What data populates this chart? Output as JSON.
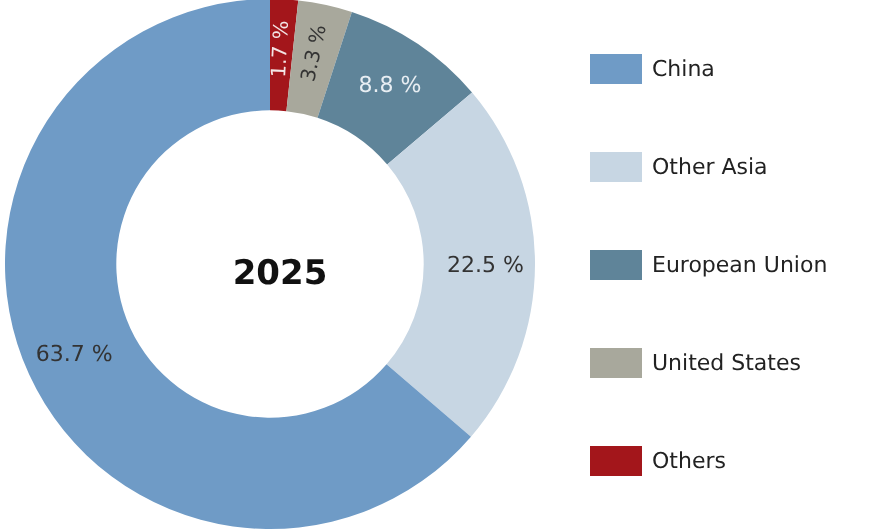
{
  "chart_data": {
    "type": "donut",
    "title": "2025",
    "categories": [
      "China",
      "Other Asia",
      "European Union",
      "United States",
      "Others"
    ],
    "values": [
      63.7,
      22.5,
      8.8,
      3.3,
      1.7
    ],
    "value_labels": [
      "63.7 %",
      "22.5 %",
      "8.8 %",
      "3.3 %",
      "1.7 %"
    ],
    "colors": [
      "#6f9bc6",
      "#c7d6e3",
      "#5f8499",
      "#a8a89c",
      "#a3161b"
    ],
    "legend": "right"
  }
}
